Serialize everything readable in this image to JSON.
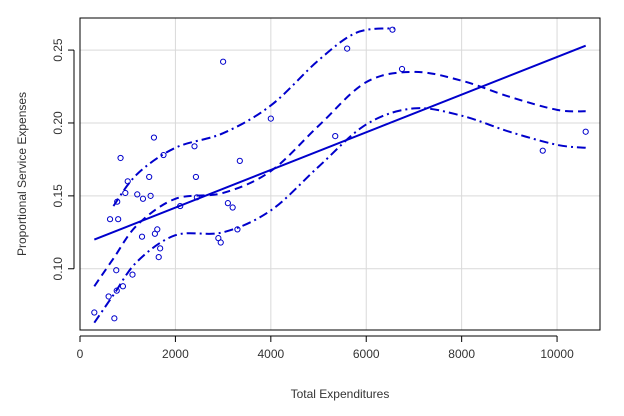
{
  "chart_data": {
    "type": "scatter",
    "title": "",
    "xlabel": "Total Expenditures",
    "ylabel": "Proportional Service Expenses",
    "xlim": [
      0,
      10900
    ],
    "ylim": [
      0.058,
      0.272
    ],
    "xticks": [
      0,
      2000,
      4000,
      6000,
      8000,
      10000
    ],
    "xtick_labels": [
      "0",
      "2000",
      "4000",
      "6000",
      "8000",
      "10000"
    ],
    "yticks": [
      0.1,
      0.15,
      0.2,
      0.25
    ],
    "ytick_labels": [
      "0.10",
      "0.15",
      "0.20",
      "0.25"
    ],
    "grid": true,
    "color": "#0000cc",
    "points": [
      [
        300,
        0.07
      ],
      [
        600,
        0.081
      ],
      [
        630,
        0.134
      ],
      [
        720,
        0.066
      ],
      [
        760,
        0.099
      ],
      [
        770,
        0.085
      ],
      [
        780,
        0.146
      ],
      [
        800,
        0.134
      ],
      [
        850,
        0.176
      ],
      [
        900,
        0.088
      ],
      [
        950,
        0.152
      ],
      [
        1000,
        0.16
      ],
      [
        1100,
        0.096
      ],
      [
        1200,
        0.151
      ],
      [
        1300,
        0.122
      ],
      [
        1320,
        0.148
      ],
      [
        1450,
        0.163
      ],
      [
        1480,
        0.15
      ],
      [
        1550,
        0.19
      ],
      [
        1570,
        0.124
      ],
      [
        1620,
        0.127
      ],
      [
        1650,
        0.108
      ],
      [
        1680,
        0.114
      ],
      [
        1750,
        0.178
      ],
      [
        2100,
        0.143
      ],
      [
        2400,
        0.184
      ],
      [
        2430,
        0.163
      ],
      [
        2450,
        0.149
      ],
      [
        2900,
        0.121
      ],
      [
        2950,
        0.118
      ],
      [
        3000,
        0.242
      ],
      [
        3100,
        0.145
      ],
      [
        3200,
        0.142
      ],
      [
        3300,
        0.127
      ],
      [
        3350,
        0.174
      ],
      [
        4000,
        0.203
      ],
      [
        5350,
        0.191
      ],
      [
        5600,
        0.251
      ],
      [
        6550,
        0.264
      ],
      [
        6750,
        0.237
      ],
      [
        9700,
        0.181
      ],
      [
        10600,
        0.194
      ]
    ],
    "lines": [
      {
        "style": "solid",
        "x": [
          300,
          10600
        ],
        "y": [
          0.12,
          0.253
        ]
      },
      {
        "style": "dashed",
        "x": [
          300,
          700,
          1200,
          2000,
          3000,
          4000,
          5000,
          6000,
          7000,
          8000,
          9000,
          10000,
          10600
        ],
        "y": [
          0.088,
          0.107,
          0.13,
          0.148,
          0.152,
          0.167,
          0.198,
          0.228,
          0.235,
          0.229,
          0.218,
          0.209,
          0.208
        ]
      },
      {
        "style": "dashdot",
        "x": [
          300,
          700,
          1200,
          2000,
          3000,
          4000,
          5000,
          6000,
          7000,
          8000,
          9000,
          10000,
          10600
        ],
        "y": [
          0.063,
          0.082,
          0.105,
          0.123,
          0.125,
          0.14,
          0.17,
          0.199,
          0.21,
          0.205,
          0.194,
          0.185,
          0.183
        ]
      },
      {
        "style": "dashdot",
        "x": [
          700,
          1200,
          2000,
          3000,
          4000,
          5000,
          5800,
          6600
        ],
        "y": [
          0.143,
          0.165,
          0.183,
          0.193,
          0.212,
          0.243,
          0.262,
          0.265
        ]
      }
    ]
  }
}
